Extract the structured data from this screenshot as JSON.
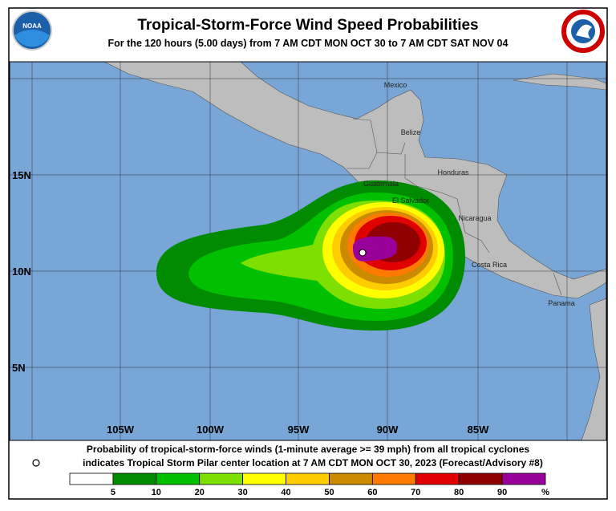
{
  "header": {
    "title": "Tropical-Storm-Force Wind Speed Probabilities",
    "subtitle": "For the 120 hours (5.00 days) from 7 AM CDT MON OCT 30 to 7 AM CDT SAT NOV 04",
    "logo_left": "NOAA"
  },
  "map": {
    "longitudes": [
      "105W",
      "100W",
      "95W",
      "90W",
      "85W"
    ],
    "latitudes": [
      "15N",
      "10N",
      "5N"
    ],
    "places": [
      "Mexico",
      "Belize",
      "Guatemala",
      "Honduras",
      "El Salvador",
      "Nicaragua",
      "Costa Rica",
      "Panama"
    ]
  },
  "footer": {
    "line1": "Probability of tropical-storm-force winds (1-minute average >= 39 mph) from all tropical cyclones",
    "line2": "indicates Tropical Storm Pilar center location at 7 AM CDT MON OCT 30, 2023 (Forecast/Advisory #8)"
  },
  "legend": {
    "colors": [
      "#ffffff",
      "#008b00",
      "#00c000",
      "#7ee000",
      "#ffff00",
      "#ffcc00",
      "#cc8a00",
      "#ff7a00",
      "#e00000",
      "#900000",
      "#990099"
    ],
    "ticks": [
      5,
      10,
      20,
      30,
      40,
      50,
      60,
      70,
      80,
      90
    ],
    "unit": "%"
  }
}
